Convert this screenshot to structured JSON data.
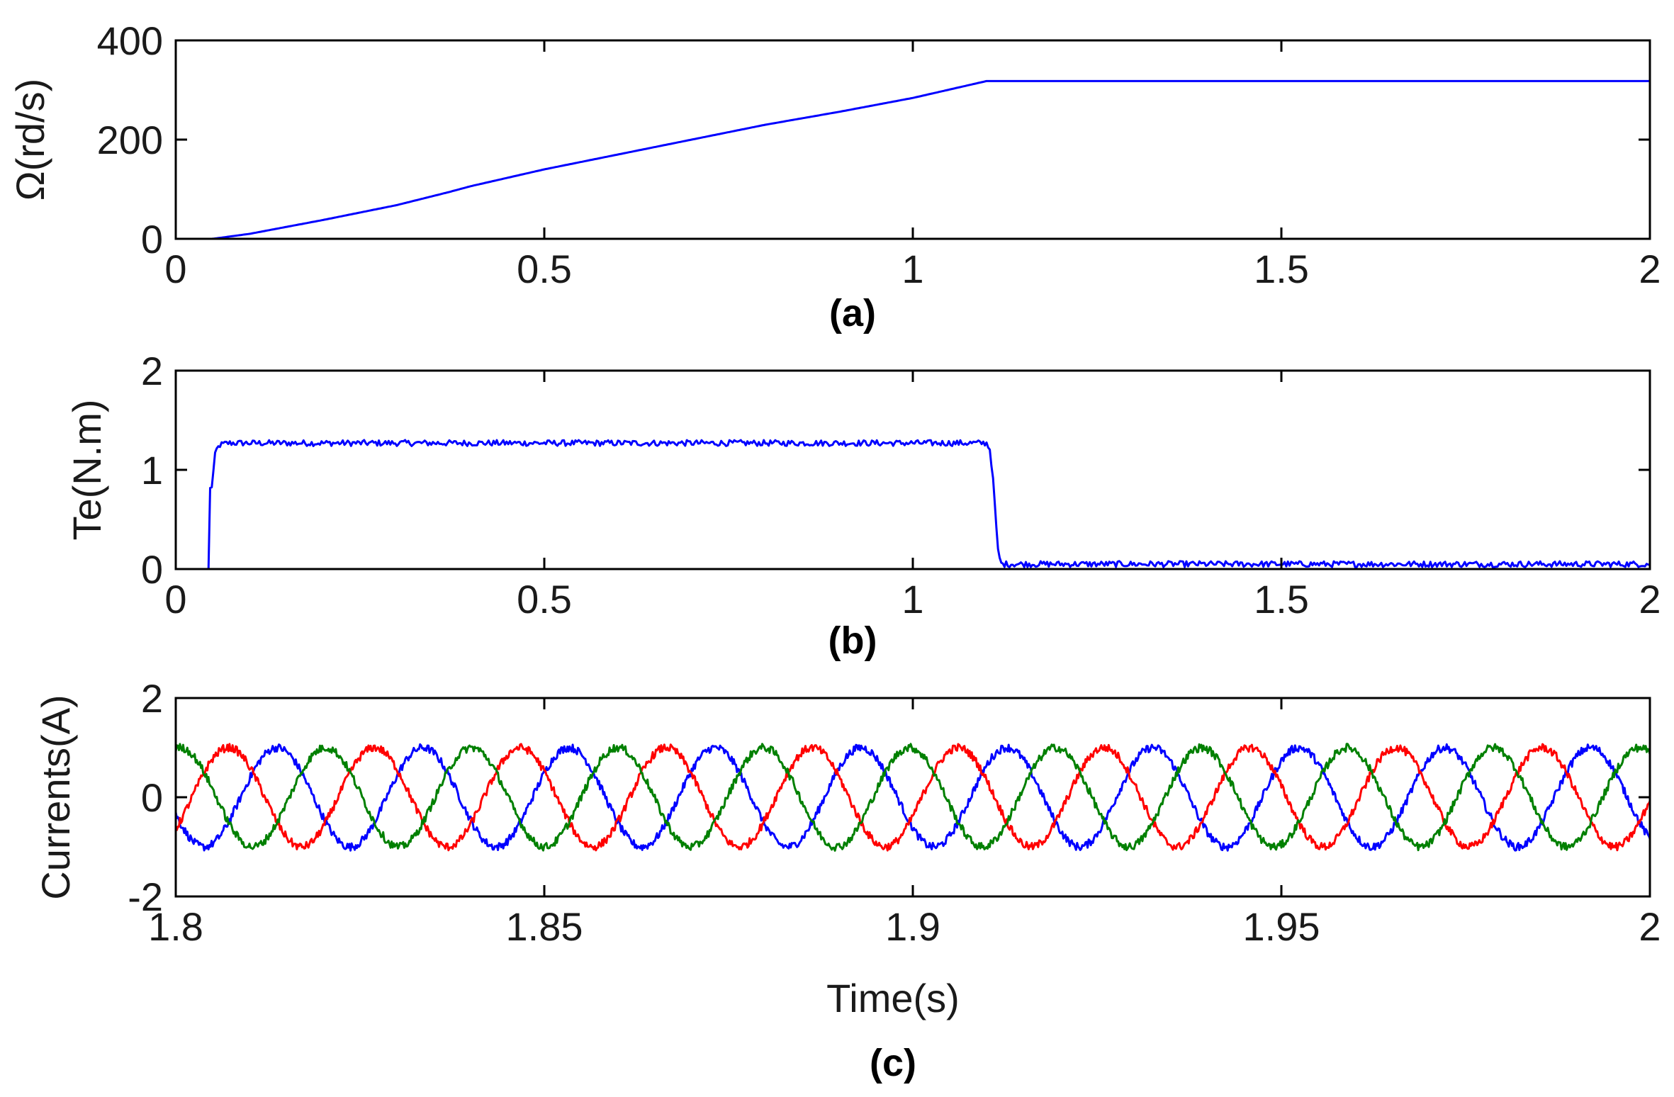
{
  "chart_data": [
    {
      "type": "line",
      "panel_label": "(a)",
      "ylabel": "Ω(rd/s)",
      "xlim": [
        0,
        2
      ],
      "ylim": [
        0,
        400
      ],
      "xticks": [
        0,
        0.5,
        1,
        1.5,
        2
      ],
      "xtick_labels": [
        "0",
        "0.5",
        "1",
        "1.5",
        "2"
      ],
      "yticks": [
        0,
        200,
        400
      ],
      "ytick_labels": [
        "0",
        "200",
        "400"
      ],
      "grid": false,
      "series": [
        {
          "color": "#0000ff",
          "x": [
            0,
            0.05,
            0.1,
            0.2,
            0.3,
            0.37,
            0.4,
            0.5,
            0.6,
            0.7,
            0.8,
            0.9,
            1.0,
            1.05,
            1.1,
            1.2,
            1.5,
            2.0
          ],
          "y": [
            0,
            0,
            10,
            38,
            68,
            94,
            106,
            140,
            170,
            200,
            230,
            256,
            284,
            301,
            318,
            318,
            318,
            318
          ]
        }
      ]
    },
    {
      "type": "line",
      "panel_label": "(b)",
      "ylabel": "Te(N.m)",
      "xlim": [
        0,
        2
      ],
      "ylim": [
        0,
        2
      ],
      "xticks": [
        0,
        0.5,
        1,
        1.5,
        2
      ],
      "xtick_labels": [
        "0",
        "0.5",
        "1",
        "1.5",
        "2"
      ],
      "yticks": [
        0,
        1,
        2
      ],
      "ytick_labels": [
        "0",
        "1",
        "2"
      ],
      "grid": false,
      "series": [
        {
          "color": "#0000ff",
          "x": [
            0,
            0.045,
            0.046,
            0.05,
            0.052,
            0.055,
            0.06,
            0.07,
            1.1,
            1.105,
            1.11,
            1.115,
            1.12,
            2.0
          ],
          "y": [
            0,
            0,
            0.8,
            0.85,
            1.1,
            1.2,
            1.25,
            1.27,
            1.27,
            1.2,
            0.8,
            0.2,
            0.05,
            0.05
          ],
          "noise_amplitude": 0.03
        }
      ]
    },
    {
      "type": "line",
      "panel_label": "(c)",
      "ylabel": "Currents(A)",
      "xlabel": "Time(s)",
      "xlim": [
        1.8,
        2
      ],
      "ylim": [
        -2,
        2
      ],
      "xticks": [
        1.8,
        1.85,
        1.9,
        1.95,
        2
      ],
      "xtick_labels": [
        "1.8",
        "1.85",
        "1.9",
        "1.95",
        "2"
      ],
      "yticks": [
        -2,
        0,
        2
      ],
      "ytick_labels": [
        "-2",
        "0",
        "2"
      ],
      "grid": false,
      "series": [
        {
          "color": "#0000ff",
          "amplitude": 1.0,
          "frequency_hz": 50.5,
          "phase_deg": -160,
          "noise_amplitude": 0.08
        },
        {
          "color": "#ff0000",
          "amplitude": 1.0,
          "frequency_hz": 50.5,
          "phase_deg": -40,
          "noise_amplitude": 0.08
        },
        {
          "color": "#008000",
          "amplitude": 1.0,
          "frequency_hz": 50.5,
          "phase_deg": 80,
          "noise_amplitude": 0.08
        }
      ]
    }
  ]
}
